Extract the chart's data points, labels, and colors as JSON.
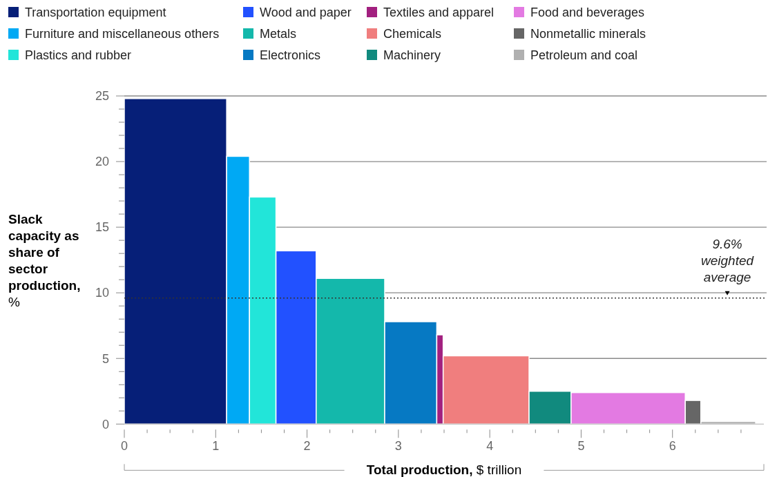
{
  "chart_data": {
    "type": "histogram",
    "xlabel": "Total production, $ trillion",
    "ylabel": "Slack capacity as share of sector production, %",
    "bins": [
      0,
      1.12,
      1.37,
      1.66,
      2.1,
      2.85,
      3.42,
      3.49,
      4.43,
      4.89,
      6.14,
      6.31,
      6.91
    ],
    "values": [
      24.8,
      20.4,
      17.3,
      13.2,
      11.1,
      7.8,
      6.8,
      5.2,
      2.5,
      2.4,
      1.8,
      0.2
    ],
    "colors": [
      "#061f78",
      "#00a9f4",
      "#22e5d9",
      "#2251ff",
      "#14b8ab",
      "#0679c3",
      "#a2207f",
      "#f07e7e",
      "#118a7e",
      "#e37ae2",
      "#666666",
      "#b0b0b0"
    ],
    "categories": [
      "Transportation equipment",
      "Furniture and miscellaneous others",
      "Plastics and rubber",
      "Wood and paper",
      "Metals",
      "Electronics",
      "Textiles and apparel",
      "Chemicals",
      "Machinery",
      "Food and beverages",
      "Nonmetallic minerals",
      "Petroleum and coal"
    ],
    "xlim": [
      0,
      7
    ],
    "xticks": [
      0,
      {
        "value": 0.25,
        "label": null
      },
      {
        "value": 0.5,
        "label": null
      },
      {
        "value": 0.75,
        "label": null
      },
      1,
      {
        "value": 1.25,
        "label": null
      },
      {
        "value": 1.5,
        "label": null
      },
      {
        "value": 1.75,
        "label": null
      },
      2,
      {
        "value": 2.25,
        "label": null
      },
      {
        "value": 2.5,
        "label": null
      },
      {
        "value": 2.75,
        "label": null
      },
      3,
      {
        "value": 3.25,
        "label": null
      },
      {
        "value": 3.5,
        "label": null
      },
      {
        "value": 3.75,
        "label": null
      },
      4,
      {
        "value": 4.25,
        "label": null
      },
      {
        "value": 4.5,
        "label": null
      },
      {
        "value": 4.75,
        "label": null
      },
      5,
      {
        "value": 5.25,
        "label": null
      },
      {
        "value": 5.5,
        "label": null
      },
      {
        "value": 5.75,
        "label": null
      },
      6,
      {
        "value": 6.25,
        "label": null
      },
      {
        "value": 6.5,
        "label": null
      },
      {
        "value": 6.75,
        "label": null
      }
    ],
    "ylim": [
      0,
      25
    ],
    "yticks": [
      0,
      {
        "value": 1,
        "label": null
      },
      {
        "value": 2,
        "label": null
      },
      {
        "value": 3,
        "label": null
      },
      {
        "value": 4,
        "label": null
      },
      5,
      {
        "value": 6,
        "label": null
      },
      {
        "value": 7,
        "label": null
      },
      {
        "value": 8,
        "label": null
      },
      {
        "value": 9,
        "label": null
      },
      10,
      {
        "value": 11,
        "label": null
      },
      {
        "value": 12,
        "label": null
      },
      {
        "value": 13,
        "label": null
      },
      {
        "value": 14,
        "label": null
      },
      15,
      {
        "value": 16,
        "label": null
      },
      {
        "value": 17,
        "label": null
      },
      {
        "value": 18,
        "label": null
      },
      {
        "value": 19,
        "label": null
      },
      20,
      {
        "value": 21,
        "label": null
      },
      {
        "value": 22,
        "label": null
      },
      {
        "value": 23,
        "label": null
      },
      {
        "value": 24,
        "label": null
      },
      25
    ],
    "grid": "y",
    "ref_lines": [
      {
        "axis": "y",
        "value": 9.6,
        "line_style": "dotted",
        "color": "#333333"
      }
    ],
    "annotations": [
      {
        "text": "9.6% weighted average",
        "x": 6.6,
        "y": 9.6
      }
    ]
  }
}
